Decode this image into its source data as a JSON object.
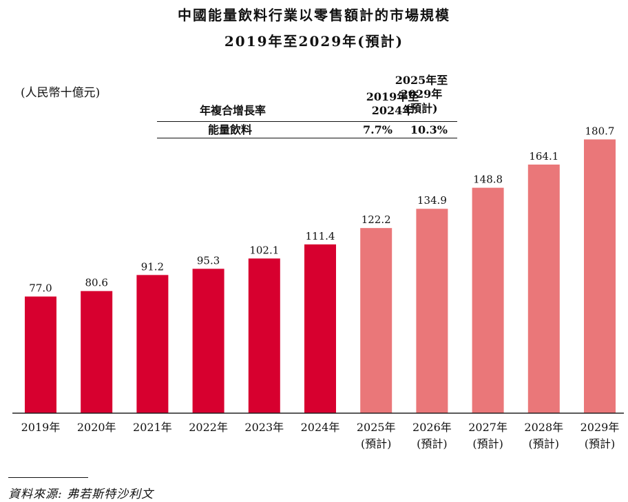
{
  "title": {
    "line1": "中國能量飲料行業以零售額計的市場規模",
    "line2": "2019年至2029年(預計)"
  },
  "unit_label": "(人民幣十億元)",
  "cagr_table": {
    "row_header": "年複合增長率",
    "col1_header_line1": "2019年至",
    "col1_header_line2": "2024年",
    "col2_header_line1": "2025年至",
    "col2_header_line2": "2029年",
    "col2_header_line3": "(預計)",
    "row_label": "能量飲料",
    "col1_value": "7.7%",
    "col2_value": "10.3%"
  },
  "chart_data": {
    "type": "bar",
    "title": "中國能量飲料行業以零售額計的市場規模",
    "subtitle": "2019年至2029年(預計)",
    "ylabel": "(人民幣十億元)",
    "xlabel": "",
    "ylim": [
      0,
      200
    ],
    "categories": [
      "2019年",
      "2020年",
      "2021年",
      "2022年",
      "2023年",
      "2024年",
      "2025年",
      "2026年",
      "2027年",
      "2028年",
      "2029年"
    ],
    "category_sublabels": [
      "",
      "",
      "",
      "",
      "",
      "",
      "(預計)",
      "(預計)",
      "(預計)",
      "(預計)",
      "(預計)"
    ],
    "values": [
      77.0,
      80.6,
      91.2,
      95.3,
      102.1,
      111.4,
      122.2,
      134.9,
      148.8,
      164.1,
      180.7
    ],
    "value_labels": [
      "77.0",
      "80.6",
      "91.2",
      "95.3",
      "102.1",
      "111.4",
      "122.2",
      "134.9",
      "148.8",
      "164.1",
      "180.7"
    ],
    "forecast": [
      false,
      false,
      false,
      false,
      false,
      false,
      true,
      true,
      true,
      true,
      true
    ],
    "colors": {
      "historical": "#d7002f",
      "forecast": "#ea7779",
      "axis": "#222222"
    },
    "grid": false,
    "legend": "none"
  },
  "source": "資料來源: 弗若斯特沙利文"
}
